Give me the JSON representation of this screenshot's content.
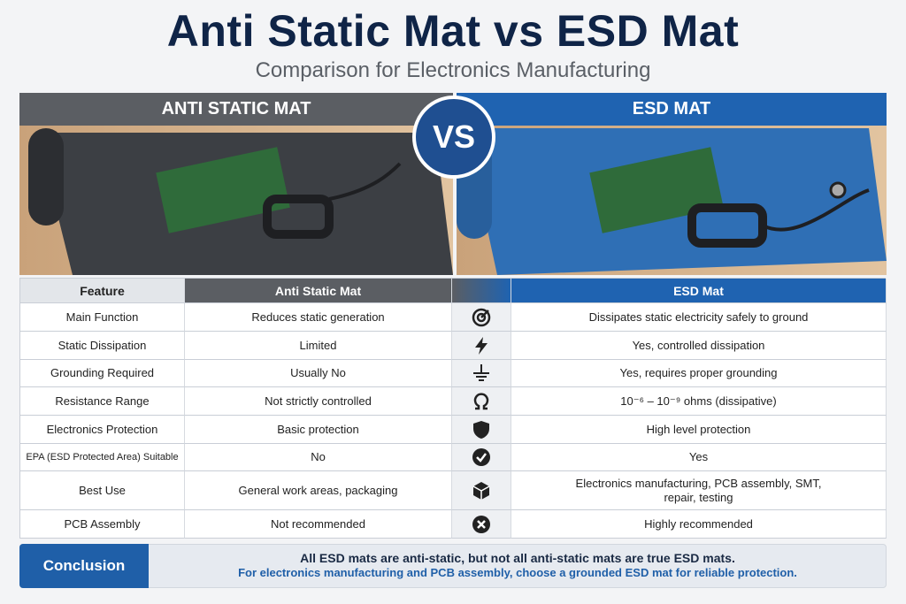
{
  "title": "Anti Static Mat vs ESD Mat",
  "subtitle": "Comparison for Electronics Manufacturing",
  "panels": {
    "left": "ANTI STATIC MAT",
    "vs": "VS",
    "right": "ESD MAT"
  },
  "table": {
    "header": [
      "Feature",
      "Anti Static Mat",
      "ESD Mat"
    ],
    "rows": [
      [
        "Main Function",
        "Reduces static generation",
        "Dissipates static electricity safely to ground"
      ],
      [
        "Static Dissipation",
        "Limited",
        "Yes, controlled dissipation"
      ],
      [
        "Grounding Required",
        "Usually No",
        "Yes, requires proper grounding"
      ],
      [
        "Resistance Range",
        "Not strictly controlled",
        "10⁻⁶ – 10⁻⁹ ohms (dissipative)"
      ],
      [
        "Electronics Protection",
        "Basic protection",
        "High level protection"
      ],
      [
        "EPA (ESD Protected Area) Suitable",
        "No",
        "Yes"
      ],
      [
        "Best Use",
        "General work areas, packaging",
        "Electronics manufacturing, PCB assembly, SMT, repair, testing"
      ],
      [
        "PCB Assembly",
        "Not recommended",
        "Highly recommended"
      ]
    ]
  },
  "conclusion": {
    "label": "Conclusion",
    "lines": [
      "All ESD mats are anti-static, but not all anti-static mats are true ESD mats.",
      "For electronics manufacturing and PCB assembly, choose a grounded ESD mat for reliable protection."
    ]
  }
}
